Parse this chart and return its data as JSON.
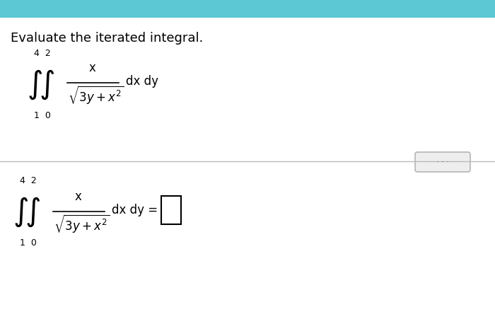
{
  "bg_color": "#ffffff",
  "top_bg": "#5bc8d4",
  "title_text": "Evaluate the iterated integral.",
  "title_fontsize": 13,
  "divider_color": "#bbbbbb",
  "text_color": "#1a1a1a",
  "upper_integral_expr": "$\\displaystyle\\iint\\frac{x}{\\sqrt{3y+x^2}}\\,\\mathrm{dx\\,dy}$",
  "lower_integral_expr": "$\\displaystyle\\iint\\frac{x}{\\sqrt{3y+x^2}}\\,\\mathrm{dx\\,dy}=$",
  "limits_upper": "4  2",
  "limits_lower": "1  0",
  "dots_text": "...",
  "integral_fontsize": 18,
  "limits_fontsize": 9
}
